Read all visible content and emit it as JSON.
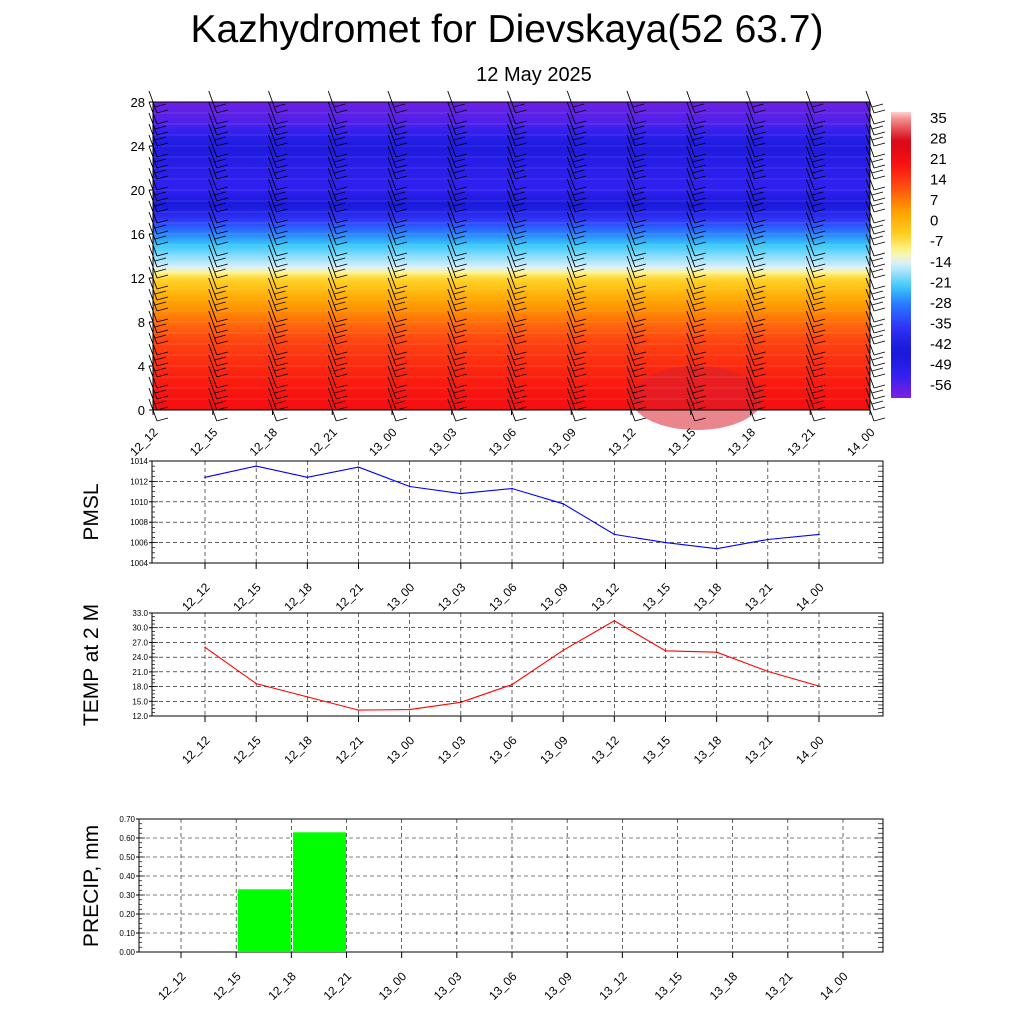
{
  "header": {
    "title": "Kazhydromet for Dievskaya(52 63.7)",
    "subtitle": "12 May 2025"
  },
  "time_labels": [
    "12_12",
    "12_15",
    "12_18",
    "12_21",
    "13_00",
    "13_03",
    "13_06",
    "13_09",
    "13_12",
    "13_15",
    "13_18",
    "13_21",
    "14_00"
  ],
  "chart_data": [
    {
      "type": "heatmap",
      "title": "",
      "y_ticks": [
        "0",
        "4",
        "8",
        "12",
        "16",
        "20",
        "24",
        "28"
      ],
      "ylim": [
        0,
        28
      ],
      "x_categories": [
        "12_12",
        "12_15",
        "12_18",
        "12_21",
        "13_00",
        "13_03",
        "13_06",
        "13_09",
        "13_12",
        "13_15",
        "13_18",
        "13_21",
        "14_00"
      ],
      "colorbar_labels": [
        "35",
        "28",
        "21",
        "14",
        "7",
        "0",
        "-7",
        "-14",
        "-21",
        "-28",
        "-35",
        "-42",
        "-49",
        "-56"
      ],
      "colorbar_range": [
        -60,
        38
      ],
      "color_stops": [
        {
          "v": -60,
          "c": "#8020e0"
        },
        {
          "v": -52,
          "c": "#3020f0"
        },
        {
          "v": -44,
          "c": "#1818d8"
        },
        {
          "v": -36,
          "c": "#3030f8"
        },
        {
          "v": -28,
          "c": "#2878ff"
        },
        {
          "v": -22,
          "c": "#38c8f8"
        },
        {
          "v": -14,
          "c": "#d8f0ff"
        },
        {
          "v": -10,
          "c": "#fff8a0"
        },
        {
          "v": -4,
          "c": "#ffd020"
        },
        {
          "v": 4,
          "c": "#ffa000"
        },
        {
          "v": 12,
          "c": "#ff5010"
        },
        {
          "v": 20,
          "c": "#f81010"
        },
        {
          "v": 28,
          "c": "#d80818"
        },
        {
          "v": 35,
          "c": "#f08080"
        },
        {
          "v": 38,
          "c": "#ffd0d0"
        }
      ],
      "temperature_profile": [
        {
          "h": 0,
          "t": 21
        },
        {
          "h": 3,
          "t": 18
        },
        {
          "h": 6,
          "t": 14
        },
        {
          "h": 8,
          "t": 9
        },
        {
          "h": 10,
          "t": 3
        },
        {
          "h": 12,
          "t": -5
        },
        {
          "h": 13,
          "t": -14
        },
        {
          "h": 15,
          "t": -22
        },
        {
          "h": 16.5,
          "t": -30
        },
        {
          "h": 18,
          "t": -40
        },
        {
          "h": 20,
          "t": -52
        },
        {
          "h": 22,
          "t": -50
        },
        {
          "h": 24,
          "t": -46
        },
        {
          "h": 26,
          "t": -55
        },
        {
          "h": 28,
          "t": -58
        }
      ]
    },
    {
      "type": "line",
      "ylabel": "PMSL",
      "ylim": [
        1004,
        1014
      ],
      "y_ticks": [
        "1004",
        "1006",
        "1008",
        "1010",
        "1012",
        "1014"
      ],
      "categories": [
        "12_12",
        "12_15",
        "12_18",
        "12_21",
        "13_00",
        "13_03",
        "13_06",
        "13_09",
        "13_12",
        "13_15",
        "13_18",
        "13_21",
        "14_00"
      ],
      "values": [
        1012.4,
        1013.5,
        1012.4,
        1013.4,
        1011.5,
        1010.8,
        1011.3,
        1009.8,
        1006.8,
        1006.0,
        1005.4,
        1006.3,
        1006.8
      ],
      "color": "#0000ff"
    },
    {
      "type": "line",
      "ylabel": "TEMP at 2 M",
      "ylim": [
        12,
        33
      ],
      "y_ticks": [
        "12.0",
        "15.0",
        "18.0",
        "21.0",
        "24.0",
        "27.0",
        "30.0",
        "33.0"
      ],
      "categories": [
        "12_12",
        "12_15",
        "12_18",
        "12_21",
        "13_00",
        "13_03",
        "13_06",
        "13_09",
        "13_12",
        "13_15",
        "13_18",
        "13_21",
        "14_00"
      ],
      "values": [
        26.0,
        18.6,
        15.9,
        13.2,
        13.3,
        14.8,
        18.4,
        25.4,
        31.4,
        25.3,
        25.0,
        21.1,
        18.1
      ],
      "color": "#ff0000"
    },
    {
      "type": "bar",
      "ylabel": "PRECIP, mm",
      "ylim": [
        0,
        0.7
      ],
      "y_ticks": [
        "0.00",
        "0.10",
        "0.20",
        "0.30",
        "0.40",
        "0.50",
        "0.60",
        "0.70"
      ],
      "categories": [
        "12_12",
        "12_15",
        "12_18",
        "12_21",
        "13_00",
        "13_03",
        "13_06",
        "13_09",
        "13_12",
        "13_15",
        "13_18",
        "13_21",
        "14_00"
      ],
      "values": [
        0,
        0,
        0.33,
        0.63,
        0,
        0,
        0,
        0,
        0,
        0,
        0,
        0,
        0
      ],
      "color": "#00ff00"
    }
  ]
}
